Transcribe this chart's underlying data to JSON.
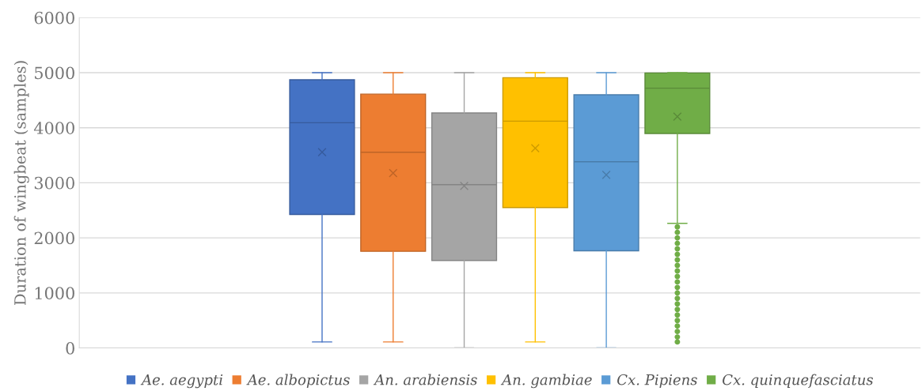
{
  "chart_data": {
    "type": "box",
    "categories": [
      null
    ],
    "ylabel": "Duration of wingbeat (samples)",
    "ylim": [
      0,
      6000
    ],
    "yticks": [
      0,
      1000,
      2000,
      3000,
      4000,
      5000,
      6000
    ],
    "grid": "y",
    "legend": "bottom",
    "series": [
      {
        "name": "Ae. aegypti",
        "color": "#4472c4",
        "boxes": [
          {
            "low": 110,
            "q1": 2425,
            "median": 4090,
            "q3": 4870,
            "high": 5000,
            "mean": 3555
          }
        ]
      },
      {
        "name": "Ae. albopictus",
        "color": "#ed7d31",
        "boxes": [
          {
            "low": 110,
            "q1": 1756,
            "median": 3555,
            "q3": 4610,
            "high": 5000,
            "mean": 3177
          }
        ]
      },
      {
        "name": "An. arabiensis",
        "color": "#a5a5a5",
        "boxes": [
          {
            "low": 0,
            "q1": 1589,
            "median": 2967,
            "q3": 4268,
            "high": 5000,
            "mean": 2943
          }
        ]
      },
      {
        "name": "An. gambiae",
        "color": "#ffc000",
        "boxes": [
          {
            "low": 110,
            "q1": 2550,
            "median": 4120,
            "q3": 4909,
            "high": 5000,
            "mean": 3627
          }
        ]
      },
      {
        "name": "Cx. Pipiens",
        "color": "#5b9bd5",
        "boxes": [
          {
            "low": 0,
            "q1": 1766,
            "median": 3383,
            "q3": 4598,
            "high": 5000,
            "mean": 3144
          }
        ]
      },
      {
        "name": "Cx. quinquefasciatus",
        "color": "#70ad47",
        "boxes": [
          {
            "low": 2263,
            "q1": 3895,
            "median": 4718,
            "q3": 4995,
            "high": 5000,
            "mean": 4201,
            "outliers": [
              2200,
              2100,
              2000,
              1900,
              1800,
              1700,
              1600,
              1500,
              1400,
              1300,
              1200,
              1100,
              1000,
              900,
              800,
              700,
              600,
              500,
              400,
              300,
              200,
              110
            ]
          }
        ]
      }
    ]
  }
}
